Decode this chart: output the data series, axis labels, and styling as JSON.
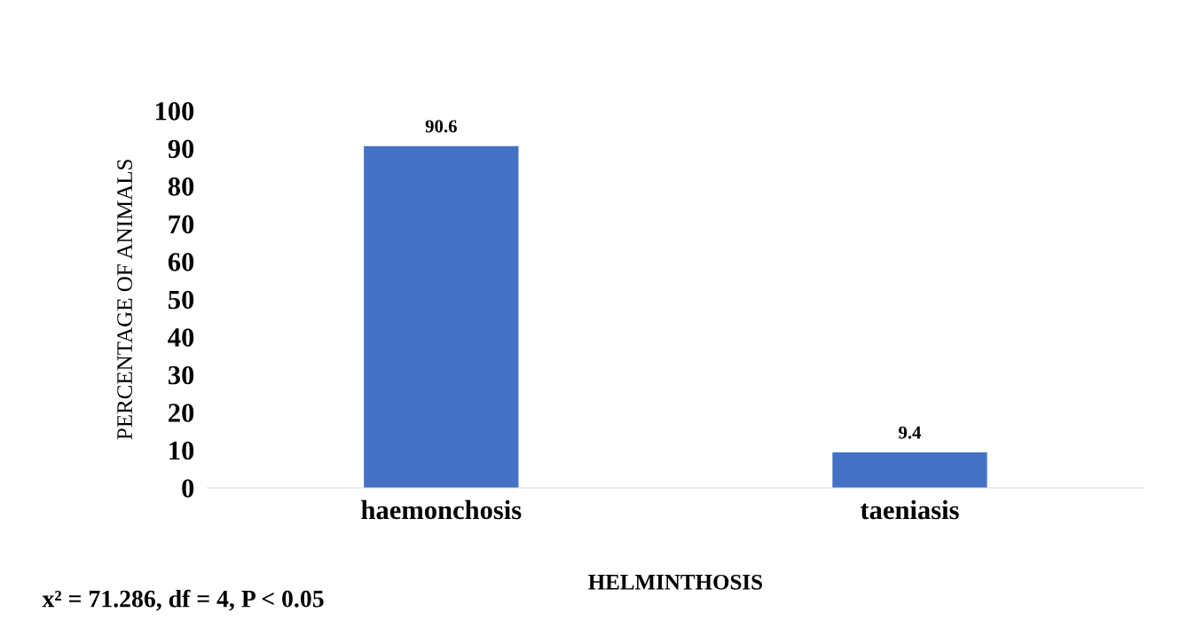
{
  "chart_data": {
    "type": "bar",
    "xlabel": "HELMINTHOSIS",
    "ylabel": "PERCENTAGE OF ANIMALS",
    "categories": [
      "haemonchosis",
      "taeniasis"
    ],
    "values": [
      90.6,
      9.4
    ],
    "color": "#4472c4",
    "ylim": [
      0,
      100
    ],
    "yticks": [
      0,
      10,
      20,
      30,
      40,
      50,
      60,
      70,
      80,
      90,
      100
    ],
    "grid": false,
    "legend": false,
    "data_labels": true,
    "annotations": [
      "x² = 71.286, df = 4, P < 0.05"
    ]
  }
}
